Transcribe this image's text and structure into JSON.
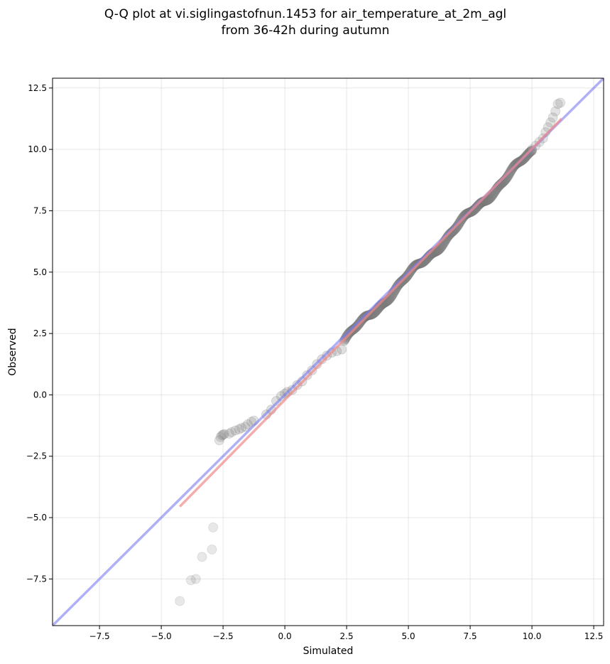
{
  "chart_data": {
    "type": "scatter",
    "title_lines": [
      "Q-Q plot at vi.siglingastofnun.1453 for air_temperature_at_2m_agl",
      "from 36-42h during autumn"
    ],
    "xlabel": "Simulated",
    "ylabel": "Observed",
    "xlim": [
      -9.4,
      12.9
    ],
    "ylim": [
      -9.4,
      12.9
    ],
    "x_ticks": [
      -7.5,
      -5.0,
      -2.5,
      0.0,
      2.5,
      5.0,
      7.5,
      10.0,
      12.5
    ],
    "x_tick_labels": [
      "−7.5",
      "−5.0",
      "−2.5",
      "0.0",
      "2.5",
      "5.0",
      "7.5",
      "10.0",
      "12.5"
    ],
    "y_ticks": [
      -7.5,
      -5.0,
      -2.5,
      0.0,
      2.5,
      5.0,
      7.5,
      10.0,
      12.5
    ],
    "y_tick_labels": [
      "−7.5",
      "−5.0",
      "−2.5",
      "0.0",
      "2.5",
      "5.0",
      "7.5",
      "10.0",
      "12.5"
    ],
    "grid": true,
    "point_color": "#808080",
    "identity_line": {
      "from": [
        -9.4,
        -9.4
      ],
      "to": [
        12.9,
        12.9
      ],
      "color": "#7b7bf0"
    },
    "fit_line": {
      "from": [
        -4.25,
        -4.55
      ],
      "to": [
        11.2,
        11.25
      ],
      "color": "#f08a8a"
    },
    "outlier_points": {
      "x": [
        -4.25,
        -3.8,
        -3.6,
        -3.35,
        -2.95,
        -2.9
      ],
      "y": [
        -8.4,
        -7.55,
        -7.5,
        -6.6,
        -6.3,
        -5.4
      ]
    },
    "lower_tail_points": {
      "x": [
        -2.65,
        -2.6,
        -2.55,
        -2.5,
        -2.45,
        -2.25,
        -2.15,
        -2.0,
        -1.85,
        -1.75,
        -1.6,
        -1.5,
        -1.35,
        -1.25
      ],
      "y": [
        -1.85,
        -1.72,
        -1.65,
        -1.62,
        -1.6,
        -1.58,
        -1.52,
        -1.45,
        -1.4,
        -1.35,
        -1.3,
        -1.2,
        -1.1,
        -1.05
      ]
    },
    "bridge_points": {
      "x": [
        -0.75,
        -0.55,
        -0.35,
        -0.15,
        0.0,
        0.1,
        0.3,
        0.5,
        0.7,
        0.9,
        1.1,
        1.3,
        1.5,
        1.7,
        1.9,
        2.1,
        2.3
      ],
      "y": [
        -0.8,
        -0.6,
        -0.25,
        -0.05,
        0.05,
        0.12,
        0.2,
        0.4,
        0.55,
        0.8,
        1.0,
        1.25,
        1.45,
        1.6,
        1.72,
        1.78,
        1.85
      ]
    },
    "dense_range": {
      "from": [
        2.4,
        2.2
      ],
      "to": [
        10.0,
        9.9
      ],
      "count": 260
    },
    "upper_tail_points": {
      "x": [
        10.0,
        10.15,
        10.3,
        10.45,
        10.55,
        10.65,
        10.75,
        10.85,
        10.95,
        11.05,
        11.15
      ],
      "y": [
        10.0,
        10.15,
        10.3,
        10.45,
        10.7,
        10.9,
        11.1,
        11.3,
        11.55,
        11.85,
        11.9
      ]
    }
  }
}
